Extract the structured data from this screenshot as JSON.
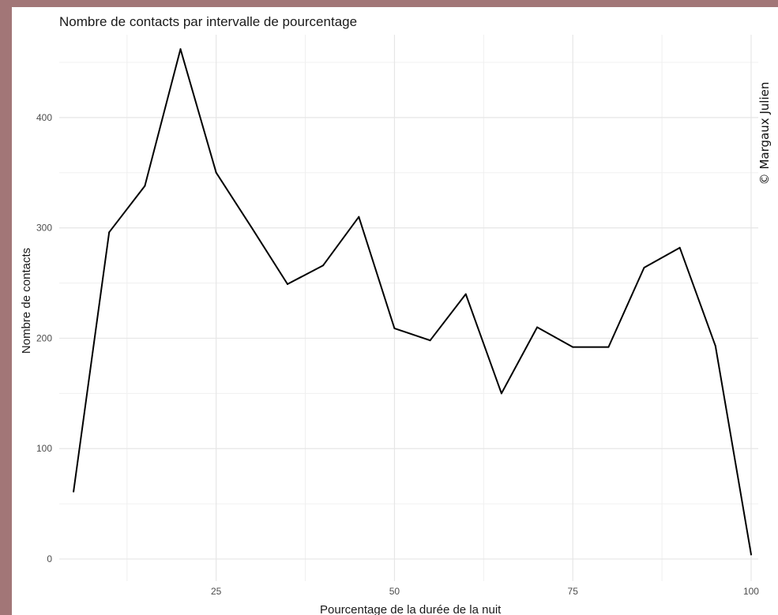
{
  "chart_data": {
    "type": "line",
    "title": "Nombre de contacts par intervalle de pourcentage",
    "xlabel": "Pourcentage de la durée de la nuit",
    "ylabel": "Nombre de contacts",
    "xlim": [
      3,
      101
    ],
    "ylim": [
      -20,
      475
    ],
    "x_ticks": [
      25,
      50,
      75,
      100
    ],
    "y_ticks": [
      0,
      100,
      200,
      300,
      400
    ],
    "grid": true,
    "legend": "none",
    "series": [
      {
        "x": [
          5,
          10,
          15,
          20,
          25,
          30,
          35,
          40,
          45,
          50,
          55,
          60,
          65,
          70,
          75,
          80,
          85,
          90,
          95,
          100
        ],
        "values": [
          61,
          296,
          338,
          462,
          350,
          300,
          249,
          266,
          310,
          209,
          198,
          240,
          150,
          210,
          192,
          192,
          264,
          282,
          193,
          4
        ]
      }
    ],
    "line_color": "#000000",
    "credit": "© Margaux Julien"
  }
}
